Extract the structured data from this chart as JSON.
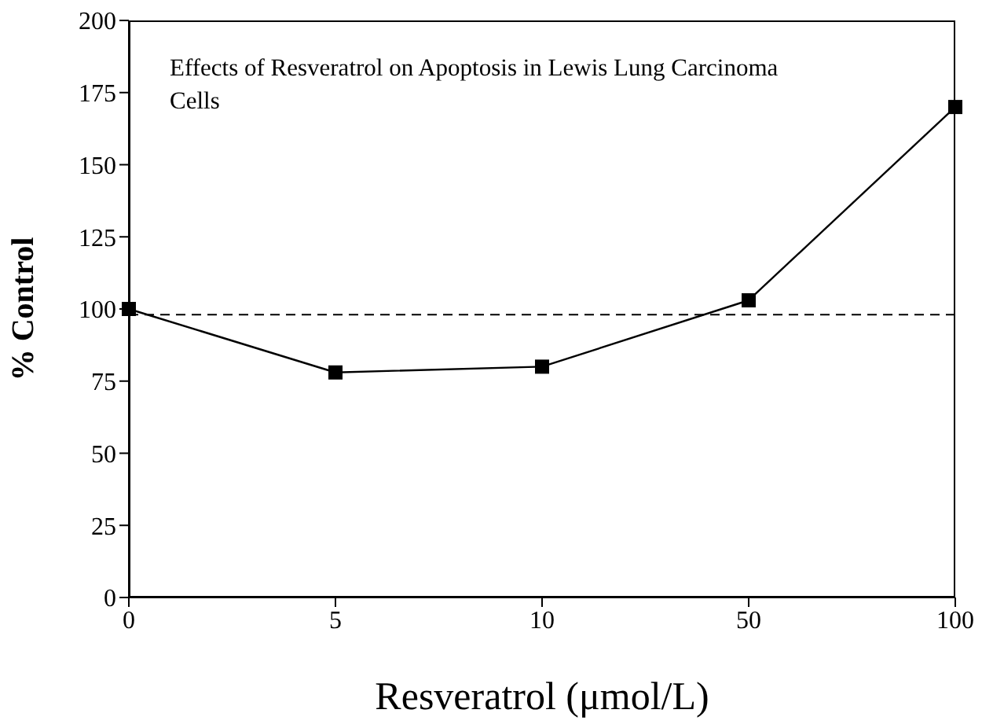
{
  "chart_data": {
    "type": "line",
    "title": "Effects of Resveratrol on Apoptosis in Lewis Lung Carcinoma Cells",
    "xlabel": "Resveratrol (μmol/L)",
    "ylabel": "% Control",
    "categories": [
      "0",
      "5",
      "10",
      "50",
      "100"
    ],
    "series": [
      {
        "color": "#000000",
        "values": [
          100,
          78,
          80,
          103,
          170
        ]
      }
    ],
    "ylim": [
      0,
      200
    ],
    "yticks": [
      0,
      25,
      50,
      75,
      100,
      125,
      150,
      175,
      200
    ],
    "ref_lines": [
      {
        "axis": "y",
        "value": 98,
        "color": "#000000",
        "line_style": "dashed"
      }
    ],
    "marker": "square",
    "line_style": "solid",
    "grid": false,
    "legend": false
  }
}
